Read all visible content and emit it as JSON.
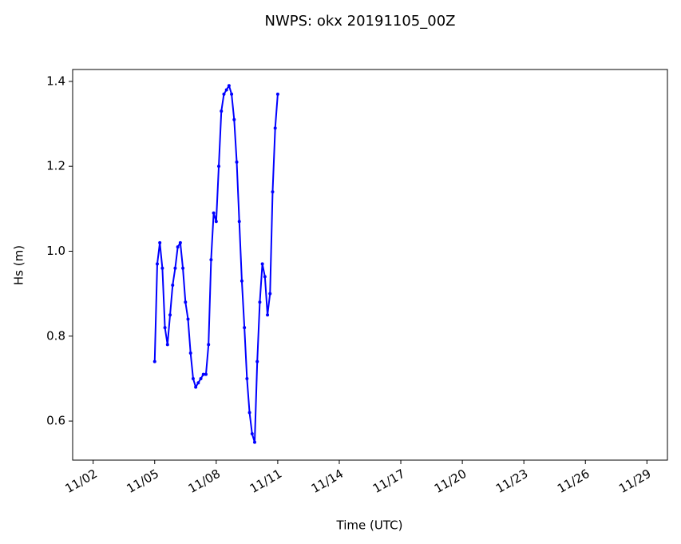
{
  "chart_data": {
    "type": "line",
    "title": "NWPS: okx 20191105_00Z",
    "xlabel": "Time (UTC)",
    "ylabel": "Hs (m)",
    "x": [
      "2019-11-05T00:00",
      "2019-11-05T03:00",
      "2019-11-05T06:00",
      "2019-11-05T09:00",
      "2019-11-05T12:00",
      "2019-11-05T15:00",
      "2019-11-05T18:00",
      "2019-11-05T21:00",
      "2019-11-06T00:00",
      "2019-11-06T03:00",
      "2019-11-06T06:00",
      "2019-11-06T09:00",
      "2019-11-06T12:00",
      "2019-11-06T15:00",
      "2019-11-06T18:00",
      "2019-11-06T21:00",
      "2019-11-07T00:00",
      "2019-11-07T03:00",
      "2019-11-07T06:00",
      "2019-11-07T09:00",
      "2019-11-07T12:00",
      "2019-11-07T15:00",
      "2019-11-07T18:00",
      "2019-11-07T21:00",
      "2019-11-08T00:00",
      "2019-11-08T03:00",
      "2019-11-08T06:00",
      "2019-11-08T09:00",
      "2019-11-08T12:00",
      "2019-11-08T15:00",
      "2019-11-08T18:00",
      "2019-11-08T21:00",
      "2019-11-09T00:00",
      "2019-11-09T03:00",
      "2019-11-09T06:00",
      "2019-11-09T09:00",
      "2019-11-09T12:00",
      "2019-11-09T15:00",
      "2019-11-09T18:00",
      "2019-11-09T21:00",
      "2019-11-10T00:00",
      "2019-11-10T03:00",
      "2019-11-10T06:00",
      "2019-11-10T09:00",
      "2019-11-10T12:00",
      "2019-11-10T15:00",
      "2019-11-10T18:00",
      "2019-11-10T21:00",
      "2019-11-11T00:00"
    ],
    "series": [
      {
        "name": "Hs",
        "color": "#0000ff",
        "values": [
          0.74,
          0.97,
          1.02,
          0.96,
          0.82,
          0.78,
          0.85,
          0.92,
          0.96,
          1.01,
          1.02,
          0.96,
          0.88,
          0.84,
          0.76,
          0.7,
          0.68,
          0.69,
          0.7,
          0.71,
          0.71,
          0.78,
          0.98,
          1.09,
          1.07,
          1.2,
          1.33,
          1.37,
          1.38,
          1.39,
          1.37,
          1.31,
          1.21,
          1.07,
          0.93,
          0.82,
          0.7,
          0.62,
          0.57,
          0.55,
          0.74,
          0.88,
          0.97,
          0.94,
          0.85,
          0.9,
          1.14,
          1.29,
          1.37
        ]
      }
    ],
    "xlim": [
      "2019-11-01T00:00",
      "2019-11-30T00:00"
    ],
    "xticks": [
      {
        "value": "2019-11-02T00:00",
        "label": "11/02"
      },
      {
        "value": "2019-11-05T00:00",
        "label": "11/05"
      },
      {
        "value": "2019-11-08T00:00",
        "label": "11/08"
      },
      {
        "value": "2019-11-11T00:00",
        "label": "11/11"
      },
      {
        "value": "2019-11-14T00:00",
        "label": "11/14"
      },
      {
        "value": "2019-11-17T00:00",
        "label": "11/17"
      },
      {
        "value": "2019-11-20T00:00",
        "label": "11/20"
      },
      {
        "value": "2019-11-23T00:00",
        "label": "11/23"
      },
      {
        "value": "2019-11-26T00:00",
        "label": "11/26"
      },
      {
        "value": "2019-11-29T00:00",
        "label": "11/29"
      }
    ],
    "ylim": [
      0.508,
      1.428
    ],
    "yticks": [
      0.6,
      0.8,
      {
        "value": 1,
        "label": "1.0"
      },
      1.2,
      1.4
    ],
    "grid": false
  }
}
